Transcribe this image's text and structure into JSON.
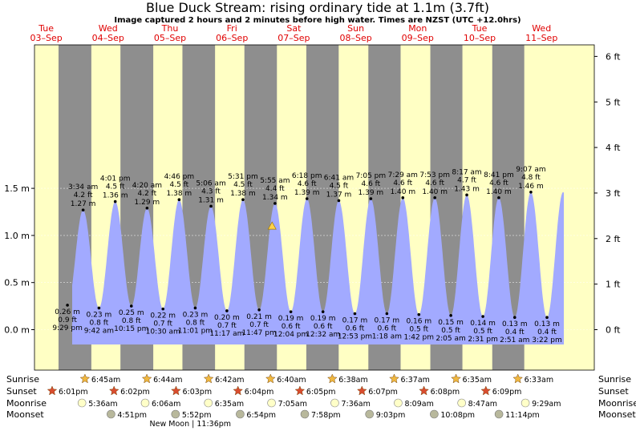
{
  "header": {
    "title": "Blue Duck Stream: rising  ordinary tide at 1.1m (3.7ft)",
    "subtitle": "Image captured 2 hours and 2 minutes before high water. Times are NZST (UTC +12.0hrs)"
  },
  "days": [
    {
      "name": "Tue",
      "date": "03–Sep"
    },
    {
      "name": "Wed",
      "date": "04–Sep"
    },
    {
      "name": "Thu",
      "date": "05–Sep"
    },
    {
      "name": "Fri",
      "date": "06–Sep"
    },
    {
      "name": "Sat",
      "date": "07–Sep"
    },
    {
      "name": "Sun",
      "date": "08–Sep"
    },
    {
      "name": "Mon",
      "date": "09–Sep"
    },
    {
      "name": "Tue",
      "date": "10–Sep"
    },
    {
      "name": "Wed",
      "date": "11–Sep"
    }
  ],
  "chart_data": {
    "type": "area",
    "x_unit": "day offset from 03-Sep 00:00 NZST",
    "ylim_m": [
      -0.3,
      1.9
    ],
    "left_ticks": [
      "0.0 m",
      "0.5 m",
      "1.0 m",
      "1.5 m"
    ],
    "left_tick_values": [
      0,
      0.5,
      1.0,
      1.5
    ],
    "right_ticks": [
      "0 ft",
      "1 ft",
      "2 ft",
      "3 ft",
      "4 ft",
      "5 ft",
      "6 ft"
    ],
    "right_tick_values_ft": [
      0,
      1,
      2,
      3,
      4,
      5,
      6
    ],
    "current": {
      "t": 4.2,
      "height_m": 1.1
    },
    "series": [
      {
        "kind": "low",
        "t": 0.895,
        "height_m": 0.26,
        "time": "9:29 pm",
        "ft": "0.9 ft",
        "m": "0.26 m"
      },
      {
        "kind": "high",
        "t": 1.148,
        "height_m": 1.27,
        "time": "3:34 am",
        "ft": "4.2 ft",
        "m": "1.27 m"
      },
      {
        "kind": "low",
        "t": 1.404,
        "height_m": 0.23,
        "time": "9:42 am",
        "ft": "0.8 ft",
        "m": "0.23 m"
      },
      {
        "kind": "high",
        "t": 1.667,
        "height_m": 1.36,
        "time": "4:01 pm",
        "ft": "4.5 ft",
        "m": "1.36 m"
      },
      {
        "kind": "low",
        "t": 1.927,
        "height_m": 0.25,
        "time": "10:15 pm",
        "ft": "0.8 ft",
        "m": "0.25 m"
      },
      {
        "kind": "high",
        "t": 2.181,
        "height_m": 1.29,
        "time": "4:20 am",
        "ft": "4.2 ft",
        "m": "1.29 m"
      },
      {
        "kind": "low",
        "t": 2.438,
        "height_m": 0.22,
        "time": "10:30 am",
        "ft": "0.7 ft",
        "m": "0.22 m"
      },
      {
        "kind": "high",
        "t": 2.699,
        "height_m": 1.38,
        "time": "4:46 pm",
        "ft": "4.5 ft",
        "m": "1.38 m"
      },
      {
        "kind": "low",
        "t": 2.959,
        "height_m": 0.23,
        "time": "11:01 pm",
        "ft": "0.8 ft",
        "m": "0.23 m"
      },
      {
        "kind": "high",
        "t": 3.213,
        "height_m": 1.31,
        "time": "5:06 am",
        "ft": "4.3 ft",
        "m": "1.31 m"
      },
      {
        "kind": "low",
        "t": 3.47,
        "height_m": 0.2,
        "time": "11:17 am",
        "ft": "0.7 ft",
        "m": "0.20 m"
      },
      {
        "kind": "high",
        "t": 3.73,
        "height_m": 1.38,
        "time": "5:31 pm",
        "ft": "4.5 ft",
        "m": "1.38 m"
      },
      {
        "kind": "low",
        "t": 3.991,
        "height_m": 0.21,
        "time": "11:47 pm",
        "ft": "0.7 ft",
        "m": "0.21 m"
      },
      {
        "kind": "high",
        "t": 4.247,
        "height_m": 1.34,
        "time": "5:55 am",
        "ft": "4.4 ft",
        "m": "1.34 m"
      },
      {
        "kind": "low",
        "t": 4.503,
        "height_m": 0.19,
        "time": "12:04 pm",
        "ft": "0.6 ft",
        "m": "0.19 m"
      },
      {
        "kind": "high",
        "t": 4.763,
        "height_m": 1.39,
        "time": "6:18 pm",
        "ft": "4.6 ft",
        "m": "1.39 m"
      },
      {
        "kind": "low",
        "t": 5.022,
        "height_m": 0.19,
        "time": "12:32 am",
        "ft": "0.6 ft",
        "m": "0.19 m"
      },
      {
        "kind": "high",
        "t": 5.278,
        "height_m": 1.37,
        "time": "6:41 am",
        "ft": "4.5 ft",
        "m": "1.37 m"
      },
      {
        "kind": "low",
        "t": 5.537,
        "height_m": 0.17,
        "time": "12:53 pm",
        "ft": "0.6 ft",
        "m": "0.17 m"
      },
      {
        "kind": "high",
        "t": 5.795,
        "height_m": 1.39,
        "time": "7:05 pm",
        "ft": "4.6 ft",
        "m": "1.39 m"
      },
      {
        "kind": "low",
        "t": 6.054,
        "height_m": 0.17,
        "time": "1:18 am",
        "ft": "0.6 ft",
        "m": "0.17 m"
      },
      {
        "kind": "high",
        "t": 6.312,
        "height_m": 1.4,
        "time": "7:29 am",
        "ft": "4.6 ft",
        "m": "1.40 m"
      },
      {
        "kind": "low",
        "t": 6.571,
        "height_m": 0.16,
        "time": "1:42 pm",
        "ft": "0.5 ft",
        "m": "0.16 m"
      },
      {
        "kind": "high",
        "t": 6.829,
        "height_m": 1.4,
        "time": "7:53 pm",
        "ft": "4.6 ft",
        "m": "1.40 m"
      },
      {
        "kind": "low",
        "t": 7.087,
        "height_m": 0.15,
        "time": "2:05 am",
        "ft": "0.5 ft",
        "m": "0.15 m"
      },
      {
        "kind": "high",
        "t": 7.345,
        "height_m": 1.43,
        "time": "8:17 am",
        "ft": "4.7 ft",
        "m": "1.43 m"
      },
      {
        "kind": "low",
        "t": 7.605,
        "height_m": 0.14,
        "time": "2:31 pm",
        "ft": "0.5 ft",
        "m": "0.14 m"
      },
      {
        "kind": "high",
        "t": 7.862,
        "height_m": 1.4,
        "time": "8:41 pm",
        "ft": "4.6 ft",
        "m": "1.40 m"
      },
      {
        "kind": "low",
        "t": 8.119,
        "height_m": 0.13,
        "time": "2:51 am",
        "ft": "0.4 ft",
        "m": "0.13 m"
      },
      {
        "kind": "high",
        "t": 8.38,
        "height_m": 1.46,
        "time": "9:07 am",
        "ft": "4.8 ft",
        "m": "1.46 m"
      },
      {
        "kind": "low",
        "t": 8.64,
        "height_m": 0.13,
        "time": "3:22 pm",
        "ft": "0.4 ft",
        "m": "0.13 m"
      }
    ]
  },
  "astro": {
    "row_labels": [
      "Sunrise",
      "Sunset",
      "Moonrise",
      "Moonset"
    ],
    "sunrise": [
      {
        "t": 1.281,
        "label": "6:45am"
      },
      {
        "t": 2.281,
        "label": "6:44am"
      },
      {
        "t": 3.279,
        "label": "6:42am"
      },
      {
        "t": 4.278,
        "label": "6:40am"
      },
      {
        "t": 5.276,
        "label": "6:38am"
      },
      {
        "t": 6.276,
        "label": "6:37am"
      },
      {
        "t": 7.274,
        "label": "6:35am"
      },
      {
        "t": 8.273,
        "label": "6:33am"
      }
    ],
    "sunset": [
      {
        "t": 0.751,
        "label": "6:01pm"
      },
      {
        "t": 1.751,
        "label": "6:02pm"
      },
      {
        "t": 2.752,
        "label": "6:03pm"
      },
      {
        "t": 3.753,
        "label": "6:04pm"
      },
      {
        "t": 4.753,
        "label": "6:05pm"
      },
      {
        "t": 5.755,
        "label": "6:07pm"
      },
      {
        "t": 6.756,
        "label": "6:08pm"
      },
      {
        "t": 7.756,
        "label": "6:09pm"
      }
    ],
    "moonrise": [
      {
        "t": 1.233,
        "label": "5:36am"
      },
      {
        "t": 2.254,
        "label": "6:06am"
      },
      {
        "t": 3.274,
        "label": "6:35am"
      },
      {
        "t": 4.295,
        "label": "7:05am"
      },
      {
        "t": 5.317,
        "label": "7:36am"
      },
      {
        "t": 6.34,
        "label": "8:09am"
      },
      {
        "t": 7.366,
        "label": "8:47am"
      },
      {
        "t": 8.395,
        "label": "9:29am"
      }
    ],
    "moonset": [
      {
        "t": 1.702,
        "label": "4:51pm"
      },
      {
        "t": 2.744,
        "label": "5:52pm"
      },
      {
        "t": 3.788,
        "label": "6:54pm"
      },
      {
        "t": 4.832,
        "label": "7:58pm"
      },
      {
        "t": 5.877,
        "label": "9:03pm"
      },
      {
        "t": 6.922,
        "label": "10:08pm"
      },
      {
        "t": 7.968,
        "label": "11:14pm"
      }
    ],
    "new_moon": {
      "t": 2.983,
      "label": "New Moon | 11:36pm"
    }
  },
  "colors": {
    "day": "#ffffc4",
    "night": "#8e8e8e",
    "water": "#a2aaff",
    "day_label": "#e00000",
    "sunrise_star": "#f0b840",
    "sunset_star": "#d94c2f",
    "moonrise_disc": "#ffffc8",
    "moonset_disc": "#b8b89c",
    "marker": "#ffd24a"
  }
}
